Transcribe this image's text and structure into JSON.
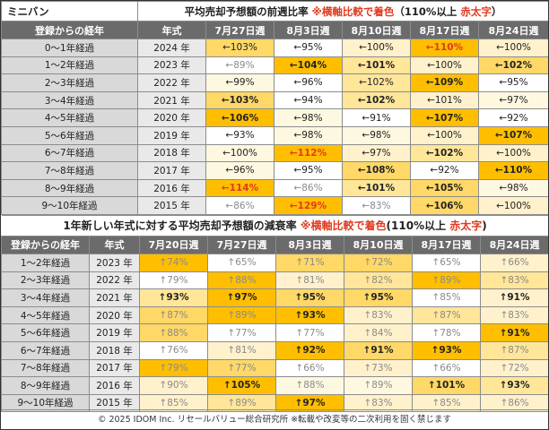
{
  "section1": {
    "label": "ミニバン",
    "title": "平均売却予想額の前週比率",
    "note_mark": "※横軸比較で着色",
    "note_paren": "（110%以上",
    "note_red": "赤太字",
    "note_end": "）",
    "headers": [
      "登録からの経年",
      "年式",
      "7月27日週",
      "8月3日週",
      "8月10日週",
      "8月17日週",
      "8月24日週"
    ],
    "rows": [
      {
        "label": "0～1年経過",
        "year": "2024 年",
        "cells": [
          {
            "t": "←103%",
            "bg": "#ffd867"
          },
          {
            "t": "←95%",
            "bg": "#ffffff"
          },
          {
            "t": "←100%",
            "bg": "#fff1cc"
          },
          {
            "t": "←110%",
            "bg": "#ffbf00",
            "red": true
          },
          {
            "t": "←100%",
            "bg": "#fff1cc"
          }
        ]
      },
      {
        "label": "1～2年経過",
        "year": "2023 年",
        "cells": [
          {
            "t": "←89%",
            "bg": "#ffffff",
            "muted": true
          },
          {
            "t": "←104%",
            "bg": "#ffbf00",
            "bold": true
          },
          {
            "t": "←101%",
            "bg": "#ffe699",
            "bold": true
          },
          {
            "t": "←100%",
            "bg": "#fff1cc"
          },
          {
            "t": "←102%",
            "bg": "#ffd867",
            "bold": true
          }
        ]
      },
      {
        "label": "2～3年経過",
        "year": "2022 年",
        "cells": [
          {
            "t": "←99%",
            "bg": "#fff8e1"
          },
          {
            "t": "←96%",
            "bg": "#ffffff"
          },
          {
            "t": "←102%",
            "bg": "#ffe699"
          },
          {
            "t": "←109%",
            "bg": "#ffbf00",
            "bold": true
          },
          {
            "t": "←95%",
            "bg": "#ffffff"
          }
        ]
      },
      {
        "label": "3～4年経過",
        "year": "2021 年",
        "cells": [
          {
            "t": "←103%",
            "bg": "#ffd867",
            "bold": true
          },
          {
            "t": "←94%",
            "bg": "#ffffff"
          },
          {
            "t": "←102%",
            "bg": "#ffe699",
            "bold": true
          },
          {
            "t": "←101%",
            "bg": "#fff1cc"
          },
          {
            "t": "←97%",
            "bg": "#fff8e1"
          }
        ]
      },
      {
        "label": "4～5年経過",
        "year": "2020 年",
        "cells": [
          {
            "t": "←106%",
            "bg": "#ffbf00",
            "bold": true
          },
          {
            "t": "←98%",
            "bg": "#fff8e1"
          },
          {
            "t": "←91%",
            "bg": "#ffffff"
          },
          {
            "t": "←107%",
            "bg": "#ffbf00",
            "bold": true
          },
          {
            "t": "←92%",
            "bg": "#ffffff"
          }
        ]
      },
      {
        "label": "5～6年経過",
        "year": "2019 年",
        "cells": [
          {
            "t": "←93%",
            "bg": "#ffffff"
          },
          {
            "t": "←98%",
            "bg": "#fff8e1"
          },
          {
            "t": "←98%",
            "bg": "#fff8e1"
          },
          {
            "t": "←100%",
            "bg": "#fff1cc"
          },
          {
            "t": "←107%",
            "bg": "#ffbf00",
            "bold": true
          }
        ]
      },
      {
        "label": "6～7年経過",
        "year": "2018 年",
        "cells": [
          {
            "t": "←100%",
            "bg": "#fff8e1"
          },
          {
            "t": "←112%",
            "bg": "#ffbf00",
            "red": true
          },
          {
            "t": "←97%",
            "bg": "#fff1cc"
          },
          {
            "t": "←102%",
            "bg": "#ffe699",
            "bold": true
          },
          {
            "t": "←100%",
            "bg": "#fff1cc"
          }
        ]
      },
      {
        "label": "7～8年経過",
        "year": "2017 年",
        "cells": [
          {
            "t": "←96%",
            "bg": "#fff8e1"
          },
          {
            "t": "←95%",
            "bg": "#ffffff"
          },
          {
            "t": "←108%",
            "bg": "#ffd867",
            "bold": true
          },
          {
            "t": "←92%",
            "bg": "#ffffff"
          },
          {
            "t": "←110%",
            "bg": "#ffbf00",
            "bold": true
          }
        ]
      },
      {
        "label": "8～9年経過",
        "year": "2016 年",
        "cells": [
          {
            "t": "←114%",
            "bg": "#ffbf00",
            "red": true
          },
          {
            "t": "←86%",
            "bg": "#ffffff",
            "muted": true
          },
          {
            "t": "←101%",
            "bg": "#ffe699",
            "bold": true
          },
          {
            "t": "←105%",
            "bg": "#ffd867",
            "bold": true
          },
          {
            "t": "←98%",
            "bg": "#fff8e1"
          }
        ]
      },
      {
        "label": "9～10年経過",
        "year": "2015 年",
        "cells": [
          {
            "t": "←86%",
            "bg": "#ffffff",
            "muted": true
          },
          {
            "t": "←129%",
            "bg": "#ffbf00",
            "red": true
          },
          {
            "t": "←83%",
            "bg": "#ffffff",
            "muted": true
          },
          {
            "t": "←106%",
            "bg": "#ffd867",
            "bold": true
          },
          {
            "t": "←100%",
            "bg": "#fff1cc"
          }
        ]
      }
    ]
  },
  "section2": {
    "title": "1年新しい年式に対する平均売却予想額の減衰率",
    "note_mark": "※横軸比較で着色",
    "note_paren": "(110%以上",
    "note_red": "赤太字",
    "note_end": ")",
    "headers": [
      "登録からの経年",
      "年式",
      "7月20日週",
      "7月27日週",
      "8月3日週",
      "8月10日週",
      "8月17日週",
      "8月24日週"
    ],
    "rows": [
      {
        "label": "1～2年経過",
        "year": "2023 年",
        "cells": [
          {
            "t": "↑74%",
            "bg": "#ffbf00",
            "muted": true
          },
          {
            "t": "↑65%",
            "bg": "#ffffff",
            "muted": true
          },
          {
            "t": "↑71%",
            "bg": "#ffd867",
            "muted": true
          },
          {
            "t": "↑72%",
            "bg": "#ffd867",
            "muted": true
          },
          {
            "t": "↑65%",
            "bg": "#ffffff",
            "muted": true
          },
          {
            "t": "↑66%",
            "bg": "#fff1cc",
            "muted": true
          }
        ]
      },
      {
        "label": "2～3年経過",
        "year": "2022 年",
        "cells": [
          {
            "t": "↑79%",
            "bg": "#ffffff",
            "muted": true
          },
          {
            "t": "↑88%",
            "bg": "#ffbf00",
            "muted": true
          },
          {
            "t": "↑81%",
            "bg": "#fff1cc",
            "muted": true
          },
          {
            "t": "↑82%",
            "bg": "#ffe699",
            "muted": true
          },
          {
            "t": "↑89%",
            "bg": "#ffbf00",
            "muted": true
          },
          {
            "t": "↑83%",
            "bg": "#ffe699",
            "muted": true
          }
        ]
      },
      {
        "label": "3～4年経過",
        "year": "2021 年",
        "cells": [
          {
            "t": "↑93%",
            "bg": "#ffe699",
            "bold": true
          },
          {
            "t": "↑97%",
            "bg": "#ffbf00",
            "bold": true
          },
          {
            "t": "↑95%",
            "bg": "#ffd867",
            "bold": true
          },
          {
            "t": "↑95%",
            "bg": "#ffd867",
            "bold": true
          },
          {
            "t": "↑85%",
            "bg": "#ffffff",
            "muted": true
          },
          {
            "t": "↑91%",
            "bg": "#fff1cc",
            "bold": true
          }
        ]
      },
      {
        "label": "4～5年経過",
        "year": "2020 年",
        "cells": [
          {
            "t": "↑87%",
            "bg": "#ffd867",
            "muted": true
          },
          {
            "t": "↑89%",
            "bg": "#ffbf00",
            "muted": true
          },
          {
            "t": "↑93%",
            "bg": "#ffbf00",
            "bold": true
          },
          {
            "t": "↑83%",
            "bg": "#fff1cc",
            "muted": true
          },
          {
            "t": "↑87%",
            "bg": "#ffe699",
            "muted": true
          },
          {
            "t": "↑83%",
            "bg": "#fff1cc",
            "muted": true
          }
        ]
      },
      {
        "label": "5～6年経過",
        "year": "2019 年",
        "cells": [
          {
            "t": "↑88%",
            "bg": "#ffd867",
            "muted": true
          },
          {
            "t": "↑77%",
            "bg": "#ffffff",
            "muted": true
          },
          {
            "t": "↑77%",
            "bg": "#ffffff",
            "muted": true
          },
          {
            "t": "↑84%",
            "bg": "#fff1cc",
            "muted": true
          },
          {
            "t": "↑78%",
            "bg": "#ffffff",
            "muted": true
          },
          {
            "t": "↑91%",
            "bg": "#ffbf00",
            "bold": true
          }
        ]
      },
      {
        "label": "6～7年経過",
        "year": "2018 年",
        "cells": [
          {
            "t": "↑76%",
            "bg": "#ffffff",
            "muted": true
          },
          {
            "t": "↑81%",
            "bg": "#fff1cc",
            "muted": true
          },
          {
            "t": "↑92%",
            "bg": "#ffbf00",
            "bold": true
          },
          {
            "t": "↑91%",
            "bg": "#ffd867",
            "bold": true
          },
          {
            "t": "↑93%",
            "bg": "#ffbf00",
            "bold": true
          },
          {
            "t": "↑87%",
            "bg": "#ffe699",
            "muted": true
          }
        ]
      },
      {
        "label": "7～8年経過",
        "year": "2017 年",
        "cells": [
          {
            "t": "↑79%",
            "bg": "#ffbf00",
            "muted": true
          },
          {
            "t": "↑77%",
            "bg": "#ffd867",
            "muted": true
          },
          {
            "t": "↑66%",
            "bg": "#ffffff",
            "muted": true
          },
          {
            "t": "↑73%",
            "bg": "#fff1cc",
            "muted": true
          },
          {
            "t": "↑66%",
            "bg": "#ffffff",
            "muted": true
          },
          {
            "t": "↑72%",
            "bg": "#fff1cc",
            "muted": true
          }
        ]
      },
      {
        "label": "8～9年経過",
        "year": "2016 年",
        "cells": [
          {
            "t": "↑90%",
            "bg": "#fff1cc",
            "muted": true
          },
          {
            "t": "↑105%",
            "bg": "#ffbf00",
            "bold": true
          },
          {
            "t": "↑88%",
            "bg": "#fff8e1",
            "muted": true
          },
          {
            "t": "↑89%",
            "bg": "#fff8e1",
            "muted": true
          },
          {
            "t": "↑101%",
            "bg": "#ffd867",
            "bold": true
          },
          {
            "t": "↑93%",
            "bg": "#ffe699",
            "bold": true
          }
        ]
      },
      {
        "label": "9～10年経過",
        "year": "2015 年",
        "cells": [
          {
            "t": "↑85%",
            "bg": "#fff1cc",
            "muted": true
          },
          {
            "t": "↑89%",
            "bg": "#ffe699",
            "muted": true
          },
          {
            "t": "↑97%",
            "bg": "#ffbf00",
            "bold": true
          },
          {
            "t": "↑83%",
            "bg": "#fff1cc",
            "muted": true
          },
          {
            "t": "↑85%",
            "bg": "#fff1cc",
            "muted": true
          },
          {
            "t": "↑86%",
            "bg": "#fff1cc",
            "muted": true
          }
        ]
      }
    ]
  },
  "footer": "© 2025 IDOM Inc. リセールバリュー総合研究所 ※転載や改変等の二次利用を固く禁じます",
  "colors": {
    "accent_red": "#e03a1e",
    "header_gray": "#6b6b6b",
    "gold": "#ffbf00",
    "muted_text": "#8a8a8a"
  }
}
